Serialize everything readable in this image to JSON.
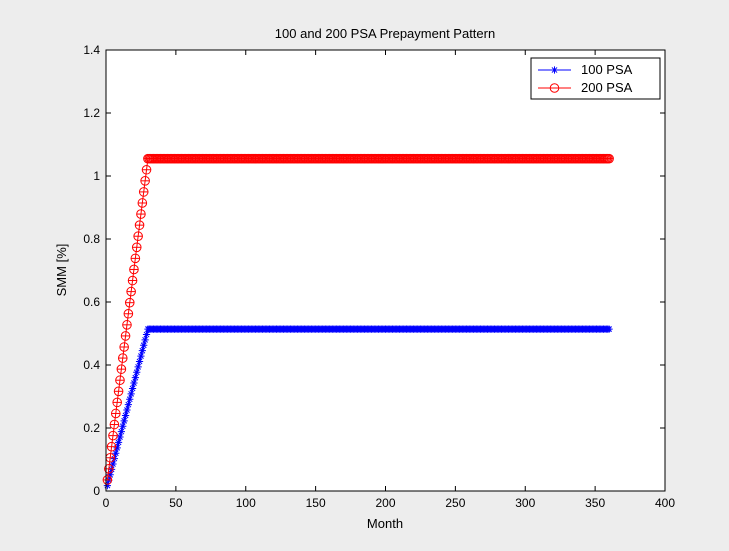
{
  "chart_data": {
    "type": "line",
    "title": "100 and 200 PSA Prepayment Pattern",
    "xlabel": "Month",
    "ylabel": "SMM [%]",
    "xlim": [
      0,
      400
    ],
    "ylim": [
      0,
      1.4
    ],
    "xticks": [
      0,
      50,
      100,
      150,
      200,
      250,
      300,
      350,
      400
    ],
    "yticks": [
      0,
      0.2,
      0.4,
      0.6,
      0.8,
      1,
      1.2,
      1.4
    ],
    "xtick_labels": [
      "0",
      "50",
      "100",
      "150",
      "200",
      "250",
      "300",
      "350",
      "400"
    ],
    "ytick_labels": [
      "0",
      "0.2",
      "0.4",
      "0.6",
      "0.8",
      "1",
      "1.2",
      "1.4"
    ],
    "grid": false,
    "legend_position": "top-right",
    "x_range": [
      1,
      360
    ],
    "ramp_months": 30,
    "series": [
      {
        "name": "100 PSA",
        "color": "#0000ff",
        "marker": "asterisk",
        "plateau": 0.514
      },
      {
        "name": "200 PSA",
        "color": "#ff0000",
        "marker": "circle",
        "plateau": 1.055
      }
    ]
  }
}
